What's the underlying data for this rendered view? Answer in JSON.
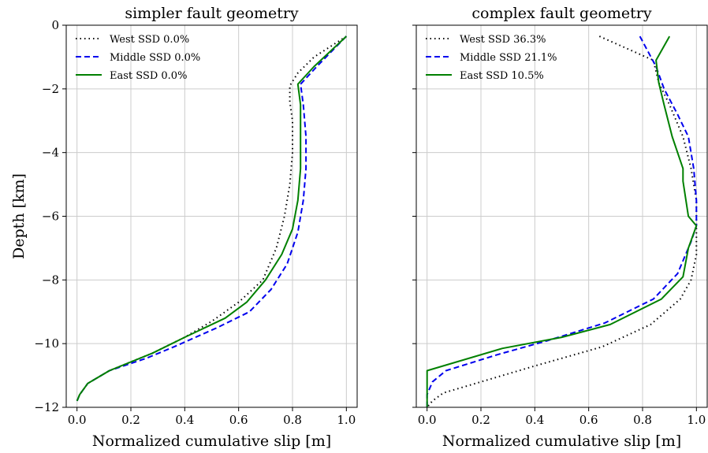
{
  "chart_data": [
    {
      "type": "line",
      "title": "simpler fault geometry",
      "xlabel": "Normalized cumulative slip [m]",
      "ylabel": "Depth [km]",
      "xlim": [
        -0.04,
        1.04
      ],
      "ylim": [
        -12,
        0
      ],
      "xticks": [
        0.0,
        0.2,
        0.4,
        0.6,
        0.8,
        1.0
      ],
      "yticks": [
        0,
        -2,
        -4,
        -6,
        -8,
        -10,
        -12
      ],
      "grid": true,
      "legend_position": "top-left",
      "series": [
        {
          "name": "West SSD 0.0%",
          "color": "#000000",
          "dash": "dotted",
          "points": [
            [
              1.0,
              -0.35
            ],
            [
              0.88,
              -1.0
            ],
            [
              0.82,
              -1.5
            ],
            [
              0.79,
              -1.9
            ],
            [
              0.79,
              -2.4
            ],
            [
              0.8,
              -3.0
            ],
            [
              0.8,
              -4.0
            ],
            [
              0.79,
              -5.0
            ],
            [
              0.77,
              -6.0
            ],
            [
              0.74,
              -7.0
            ],
            [
              0.69,
              -8.0
            ],
            [
              0.6,
              -8.7
            ],
            [
              0.5,
              -9.3
            ],
            [
              0.4,
              -9.8
            ],
            [
              0.28,
              -10.3
            ],
            [
              0.12,
              -10.85
            ],
            [
              0.04,
              -11.25
            ],
            [
              0.01,
              -11.6
            ],
            [
              0.0,
              -11.8
            ]
          ]
        },
        {
          "name": "Middle SSD 0.0%",
          "color": "#0000ee",
          "dash": "dashed",
          "points": [
            [
              1.0,
              -0.35
            ],
            [
              0.89,
              -1.3
            ],
            [
              0.83,
              -1.85
            ],
            [
              0.84,
              -2.5
            ],
            [
              0.85,
              -3.5
            ],
            [
              0.85,
              -4.5
            ],
            [
              0.84,
              -5.5
            ],
            [
              0.82,
              -6.5
            ],
            [
              0.78,
              -7.5
            ],
            [
              0.72,
              -8.3
            ],
            [
              0.64,
              -9.0
            ],
            [
              0.52,
              -9.5
            ],
            [
              0.36,
              -10.1
            ],
            [
              0.26,
              -10.45
            ],
            [
              0.12,
              -10.85
            ],
            [
              0.04,
              -11.25
            ],
            [
              0.01,
              -11.6
            ],
            [
              0.0,
              -11.8
            ]
          ]
        },
        {
          "name": "East SSD 0.0%",
          "color": "#008000",
          "dash": "solid",
          "points": [
            [
              1.0,
              -0.35
            ],
            [
              0.88,
              -1.3
            ],
            [
              0.82,
              -1.85
            ],
            [
              0.83,
              -2.5
            ],
            [
              0.83,
              -3.5
            ],
            [
              0.83,
              -4.5
            ],
            [
              0.82,
              -5.5
            ],
            [
              0.8,
              -6.4
            ],
            [
              0.76,
              -7.2
            ],
            [
              0.7,
              -8.0
            ],
            [
              0.63,
              -8.7
            ],
            [
              0.55,
              -9.2
            ],
            [
              0.4,
              -9.8
            ],
            [
              0.28,
              -10.3
            ],
            [
              0.12,
              -10.85
            ],
            [
              0.04,
              -11.25
            ],
            [
              0.01,
              -11.6
            ],
            [
              0.0,
              -11.8
            ]
          ]
        }
      ]
    },
    {
      "type": "line",
      "title": "complex fault geometry",
      "xlabel": "Normalized cumulative slip [m]",
      "ylabel": "",
      "xlim": [
        -0.04,
        1.04
      ],
      "ylim": [
        -12,
        0
      ],
      "xticks": [
        0.0,
        0.2,
        0.4,
        0.6,
        0.8,
        1.0
      ],
      "yticks": [
        0,
        -2,
        -4,
        -6,
        -8,
        -10,
        -12
      ],
      "grid": true,
      "legend_position": "top-left",
      "series": [
        {
          "name": "West SSD 36.3%",
          "color": "#000000",
          "dash": "dotted",
          "points": [
            [
              0.64,
              -0.35
            ],
            [
              0.84,
              -1.1
            ],
            [
              0.86,
              -1.8
            ],
            [
              0.9,
              -2.5
            ],
            [
              0.95,
              -3.5
            ],
            [
              0.98,
              -4.5
            ],
            [
              1.0,
              -5.5
            ],
            [
              1.0,
              -6.4
            ],
            [
              1.0,
              -7.2
            ],
            [
              0.98,
              -8.0
            ],
            [
              0.94,
              -8.6
            ],
            [
              0.83,
              -9.4
            ],
            [
              0.65,
              -10.1
            ],
            [
              0.4,
              -10.7
            ],
            [
              0.2,
              -11.2
            ],
            [
              0.06,
              -11.55
            ],
            [
              0.02,
              -11.8
            ],
            [
              0.0,
              -12.0
            ]
          ]
        },
        {
          "name": "Middle SSD 21.1%",
          "color": "#0000ee",
          "dash": "dashed",
          "points": [
            [
              0.79,
              -0.35
            ],
            [
              0.85,
              -1.3
            ],
            [
              0.88,
              -2.0
            ],
            [
              0.93,
              -2.8
            ],
            [
              0.97,
              -3.5
            ],
            [
              0.99,
              -4.5
            ],
            [
              1.0,
              -5.5
            ],
            [
              1.0,
              -6.3
            ],
            [
              0.98,
              -6.8
            ],
            [
              0.93,
              -7.8
            ],
            [
              0.84,
              -8.6
            ],
            [
              0.66,
              -9.35
            ],
            [
              0.45,
              -9.9
            ],
            [
              0.26,
              -10.35
            ],
            [
              0.07,
              -10.85
            ],
            [
              0.02,
              -11.2
            ],
            [
              0.0,
              -11.6
            ],
            [
              0.0,
              -12.0
            ]
          ]
        },
        {
          "name": "East SSD 10.5%",
          "color": "#008000",
          "dash": "solid",
          "points": [
            [
              0.9,
              -0.35
            ],
            [
              0.85,
              -1.1
            ],
            [
              0.86,
              -1.8
            ],
            [
              0.88,
              -2.5
            ],
            [
              0.91,
              -3.5
            ],
            [
              0.95,
              -4.5
            ],
            [
              0.95,
              -4.9
            ],
            [
              0.97,
              -6.0
            ],
            [
              1.0,
              -6.3
            ],
            [
              0.97,
              -7.0
            ],
            [
              0.95,
              -7.9
            ],
            [
              0.87,
              -8.6
            ],
            [
              0.68,
              -9.4
            ],
            [
              0.5,
              -9.8
            ],
            [
              0.28,
              -10.15
            ],
            [
              0.0,
              -10.85
            ],
            [
              0.0,
              -11.2
            ],
            [
              0.0,
              -12.0
            ]
          ]
        }
      ]
    }
  ]
}
